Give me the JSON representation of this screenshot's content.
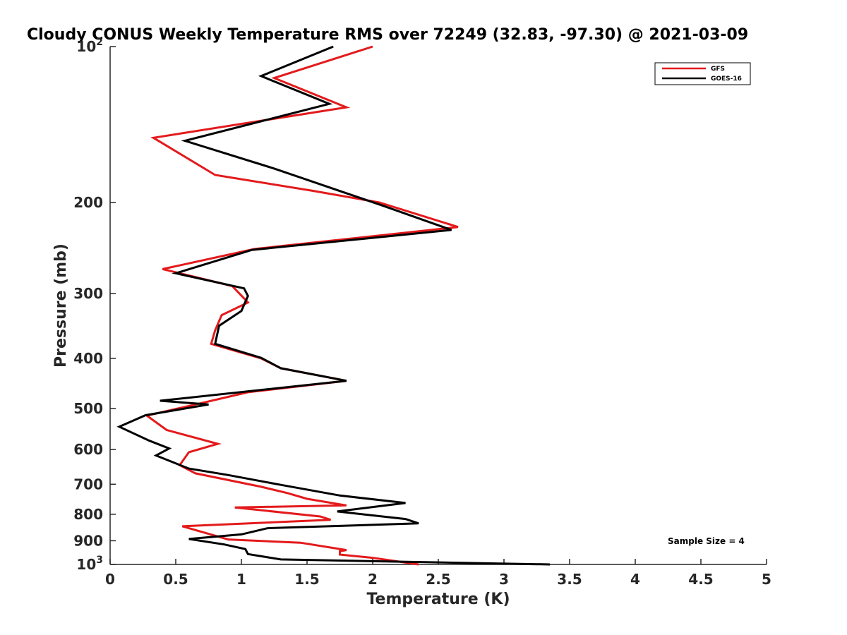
{
  "chart_data": {
    "type": "line",
    "title": "Cloudy CONUS Weekly Temperature RMS over 72249 (32.83, -97.30) @ 2021-03-09",
    "xlabel": "Temperature (K)",
    "ylabel": "Pressure (mb)",
    "xlim": [
      0,
      5
    ],
    "ylim": [
      1000,
      100
    ],
    "yscale": "log",
    "y_reversed": true,
    "x_ticks": [
      "0",
      "0.5",
      "1",
      "1.5",
      "2",
      "2.5",
      "3",
      "3.5",
      "4",
      "4.5",
      "5"
    ],
    "y_ticks": [
      {
        "value": 100,
        "base": "10",
        "exp": "2"
      },
      {
        "value": 200,
        "label": "200"
      },
      {
        "value": 300,
        "label": "300"
      },
      {
        "value": 400,
        "label": "400"
      },
      {
        "value": 500,
        "label": "500"
      },
      {
        "value": 600,
        "label": "600"
      },
      {
        "value": 700,
        "label": "700"
      },
      {
        "value": 800,
        "label": "800"
      },
      {
        "value": 900,
        "label": "900"
      },
      {
        "value": 1000,
        "base": "10",
        "exp": "3"
      }
    ],
    "legend_position": "top-right",
    "annotation": "Sample Size = 4",
    "series": [
      {
        "name": "GFS",
        "color": "#e31a1c",
        "points": [
          [
            2.0,
            100
          ],
          [
            1.25,
            115
          ],
          [
            1.8,
            131
          ],
          [
            0.33,
            150
          ],
          [
            0.8,
            177
          ],
          [
            1.55,
            190
          ],
          [
            2.05,
            200
          ],
          [
            2.65,
            223
          ],
          [
            1.1,
            246
          ],
          [
            0.4,
            269
          ],
          [
            0.93,
            290
          ],
          [
            1.05,
            312
          ],
          [
            0.85,
            330
          ],
          [
            0.8,
            353
          ],
          [
            0.77,
            375
          ],
          [
            1.15,
            400
          ],
          [
            1.3,
            418
          ],
          [
            1.8,
            442
          ],
          [
            1.05,
            465
          ],
          [
            0.65,
            491
          ],
          [
            0.28,
            516
          ],
          [
            0.43,
            550
          ],
          [
            0.82,
            585
          ],
          [
            0.6,
            607
          ],
          [
            0.53,
            643
          ],
          [
            0.65,
            667
          ],
          [
            1.15,
            708
          ],
          [
            1.35,
            728
          ],
          [
            1.5,
            747
          ],
          [
            1.8,
            769
          ],
          [
            0.95,
            776
          ],
          [
            1.6,
            808
          ],
          [
            1.68,
            820
          ],
          [
            0.55,
            844
          ],
          [
            0.9,
            895
          ],
          [
            1.45,
            908
          ],
          [
            1.8,
            938
          ],
          [
            1.75,
            943
          ],
          [
            1.75,
            957
          ],
          [
            2.0,
            971
          ],
          [
            2.35,
            1000
          ]
        ]
      },
      {
        "name": "GOES-16",
        "color": "#000000",
        "points": [
          [
            1.7,
            100
          ],
          [
            1.15,
            114
          ],
          [
            1.67,
            129
          ],
          [
            0.57,
            152
          ],
          [
            1.25,
            172
          ],
          [
            2.08,
            203
          ],
          [
            2.6,
            226
          ],
          [
            1.08,
            247
          ],
          [
            0.5,
            274
          ],
          [
            1.02,
            293
          ],
          [
            1.05,
            303
          ],
          [
            1.0,
            324
          ],
          [
            0.83,
            346
          ],
          [
            0.8,
            375
          ],
          [
            1.15,
            399
          ],
          [
            1.3,
            418
          ],
          [
            1.8,
            442
          ],
          [
            0.38,
            483
          ],
          [
            0.75,
            491
          ],
          [
            0.27,
            515
          ],
          [
            0.07,
            542
          ],
          [
            0.3,
            577
          ],
          [
            0.45,
            597
          ],
          [
            0.35,
            616
          ],
          [
            0.6,
            653
          ],
          [
            0.9,
            672
          ],
          [
            1.3,
            702
          ],
          [
            1.75,
            736
          ],
          [
            2.25,
            761
          ],
          [
            1.73,
            790
          ],
          [
            2.25,
            817
          ],
          [
            2.35,
            833
          ],
          [
            1.2,
            851
          ],
          [
            1.0,
            875
          ],
          [
            0.6,
            893
          ],
          [
            0.87,
            915
          ],
          [
            1.03,
            934
          ],
          [
            1.05,
            955
          ],
          [
            1.3,
            978
          ],
          [
            3.35,
            1000
          ]
        ]
      }
    ]
  }
}
